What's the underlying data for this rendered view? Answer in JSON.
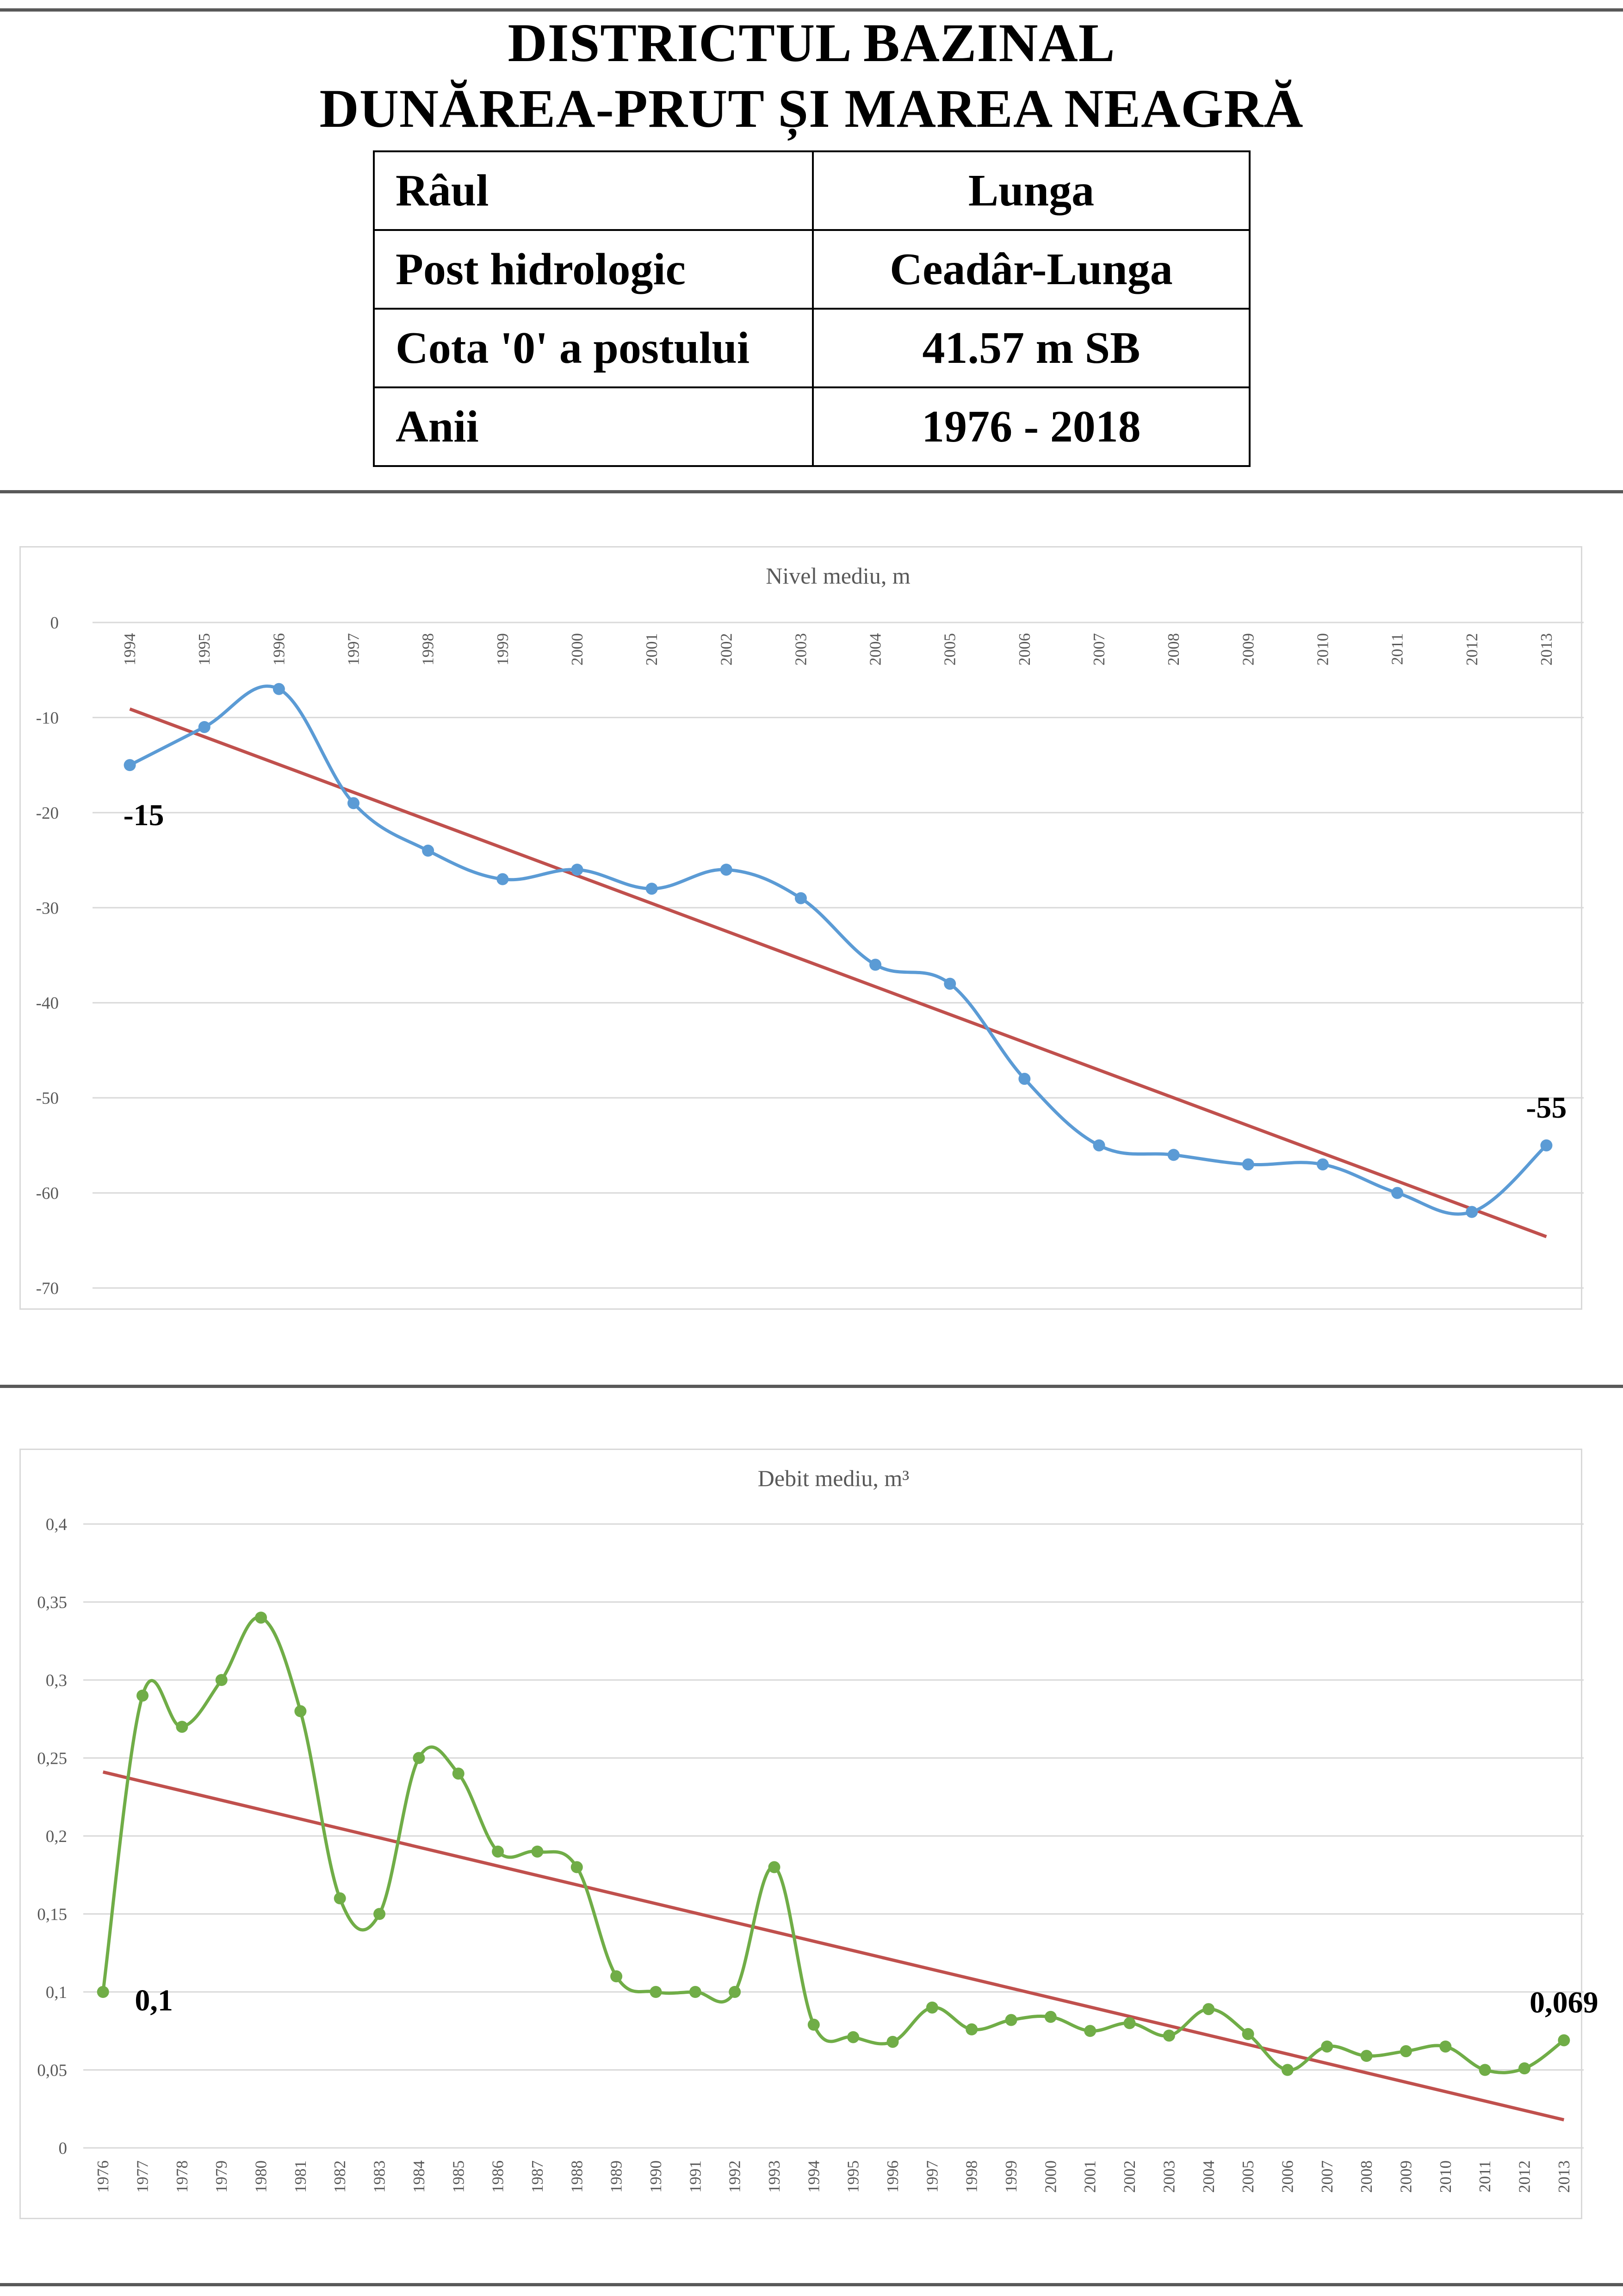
{
  "header": {
    "title_line1": "DISTRICTUL BAZINAL",
    "title_line2": "DUNĂREA-PRUT ȘI MAREA NEAGRĂ"
  },
  "info_table": [
    {
      "label": "Râul",
      "value": "Lunga"
    },
    {
      "label": "Post hidrologic",
      "value": "Ceadâr-Lunga"
    },
    {
      "label": "Cota '0' a postului",
      "value": "41.57 m SB"
    },
    {
      "label": "Anii",
      "value": "1976 - 2018"
    }
  ],
  "chart_data": [
    {
      "type": "line",
      "title": "Nivel mediu, m",
      "xlabel": "",
      "ylabel": "",
      "x_axis_position": "top",
      "y_ticks": [
        "0",
        "-10",
        "-20",
        "-30",
        "-40",
        "-50",
        "-60",
        "-70"
      ],
      "ylim": [
        -70,
        0
      ],
      "grid": true,
      "categories": [
        "1994",
        "1995",
        "1996",
        "1997",
        "1998",
        "1999",
        "2000",
        "2001",
        "2002",
        "2003",
        "2004",
        "2005",
        "2006",
        "2007",
        "2008",
        "2009",
        "2010",
        "2011",
        "2012",
        "2013"
      ],
      "series": [
        {
          "values": [
            -15,
            -11,
            -7,
            -19,
            -24,
            -27,
            -26,
            -28,
            -26,
            -29,
            -36,
            -38,
            -48,
            -55,
            -56,
            -57,
            -57,
            -60,
            -62,
            -55
          ],
          "color": "#5b9bd5",
          "smooth": true,
          "markers": true
        }
      ],
      "trendline": {
        "start": -9.1,
        "end": -64.6,
        "color": "#c0504d"
      },
      "annotations": [
        {
          "text": "-15",
          "anchor_index": 0
        },
        {
          "text": "-55",
          "anchor_index": 19
        }
      ]
    },
    {
      "type": "line",
      "title": "Debit mediu, m³",
      "xlabel": "",
      "ylabel": "",
      "x_axis_position": "bottom",
      "y_ticks": [
        "0",
        "0,05",
        "0,1",
        "0,15",
        "0,2",
        "0,25",
        "0,3",
        "0,35",
        "0,4"
      ],
      "ylim": [
        0,
        0.4
      ],
      "grid": true,
      "categories": [
        "1976",
        "1977",
        "1978",
        "1979",
        "1980",
        "1981",
        "1982",
        "1983",
        "1984",
        "1985",
        "1986",
        "1987",
        "1988",
        "1989",
        "1990",
        "1991",
        "1992",
        "1993",
        "1994",
        "1995",
        "1996",
        "1997",
        "1998",
        "1999",
        "2000",
        "2001",
        "2002",
        "2003",
        "2004",
        "2005",
        "2006",
        "2007",
        "2008",
        "2009",
        "2010",
        "2011",
        "2012",
        "2013"
      ],
      "series": [
        {
          "values": [
            0.1,
            0.29,
            0.27,
            0.3,
            0.34,
            0.28,
            0.16,
            0.15,
            0.25,
            0.24,
            0.19,
            0.19,
            0.18,
            0.11,
            0.1,
            0.1,
            0.1,
            0.18,
            0.079,
            0.071,
            0.068,
            0.09,
            0.076,
            0.082,
            0.084,
            0.075,
            0.08,
            0.072,
            0.089,
            0.073,
            0.05,
            0.065,
            0.059,
            0.062,
            0.065,
            0.05,
            0.051,
            0.069
          ],
          "color": "#70ad47",
          "smooth": true,
          "markers": true
        }
      ],
      "trendline": {
        "start": 0.241,
        "end": 0.018,
        "color": "#c0504d"
      },
      "annotations": [
        {
          "text": "0,1",
          "anchor_index": 0
        },
        {
          "text": "0,069",
          "anchor_index": 37
        }
      ]
    }
  ]
}
